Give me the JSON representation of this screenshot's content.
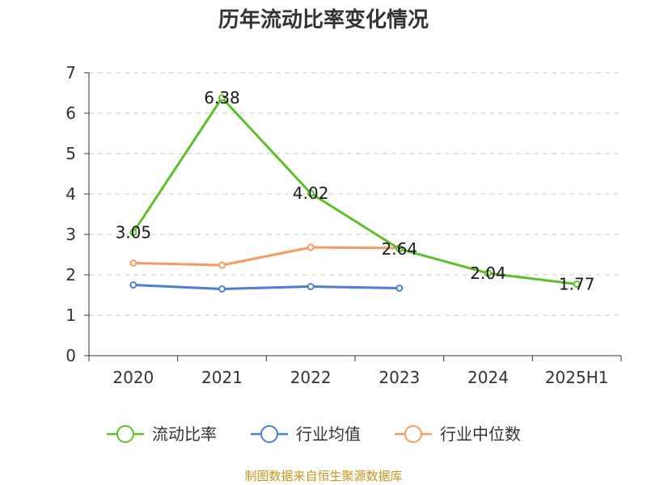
{
  "chart_data": {
    "type": "line",
    "title": "历年流动比率变化情况",
    "categories": [
      "2020",
      "2021",
      "2022",
      "2023",
      "2024",
      "2025H1"
    ],
    "ylim": [
      0,
      7
    ],
    "yticks": [
      "0",
      "1",
      "2",
      "3",
      "4",
      "5",
      "6",
      "7"
    ],
    "grid": true,
    "legend_position": "bottom",
    "series": [
      {
        "name": "流动比率",
        "color": "#5cbf2a",
        "values": [
          3.05,
          6.38,
          4.02,
          2.64,
          2.04,
          1.77
        ],
        "labels": [
          "3.05",
          "6.38",
          "4.02",
          "2.64",
          "2.04",
          "1.77"
        ]
      },
      {
        "name": "行业均值",
        "color": "#4a7fd4",
        "values": [
          1.75,
          1.65,
          1.71,
          1.67,
          null,
          null
        ],
        "labels": null
      },
      {
        "name": "行业中位数",
        "color": "#f79a60",
        "values": [
          2.29,
          2.24,
          2.68,
          2.66,
          null,
          null
        ],
        "labels": null
      }
    ],
    "source": "制图数据来自恒生聚源数据库"
  }
}
